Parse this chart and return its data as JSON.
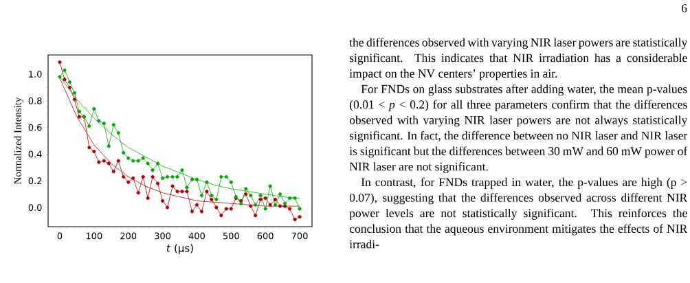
{
  "chart_data": {
    "type": "line",
    "xlabel": "*t* (μs)",
    "ylabel": "Normalized Intensity",
    "xlim": [
      -34,
      736
    ],
    "ylim": [
      -0.144,
      1.144
    ],
    "xticks": [
      0,
      100,
      200,
      300,
      400,
      500,
      600,
      700
    ],
    "yticks": [
      {
        "value": 0,
        "label": "0.0"
      },
      {
        "value": 0.2,
        "label": "0.2"
      },
      {
        "value": 0.4,
        "label": "0.4"
      },
      {
        "value": 0.6,
        "label": "0.6"
      },
      {
        "value": 0.8,
        "label": "0.8"
      },
      {
        "value": 1.0,
        "label": "1.0"
      }
    ],
    "x": [
      0,
      14,
      29,
      43,
      57,
      71,
      86,
      100,
      114,
      129,
      143,
      157,
      171,
      186,
      200,
      214,
      229,
      243,
      257,
      271,
      286,
      300,
      314,
      329,
      343,
      357,
      371,
      386,
      400,
      414,
      429,
      443,
      457,
      471,
      486,
      500,
      514,
      529,
      543,
      557,
      571,
      586,
      600,
      614,
      629,
      643,
      657,
      671,
      686,
      700
    ],
    "marker": "circle",
    "line_style": "solid",
    "series": [
      {
        "type": "line",
        "marker": "none",
        "color": "#c00000",
        "x": [
          0,
          50,
          100,
          150,
          200,
          250,
          300,
          350,
          400,
          450,
          500,
          550,
          600,
          650,
          700
        ],
        "values": [
          0.97,
          0.68,
          0.47,
          0.33,
          0.23,
          0.16,
          0.11,
          0.08,
          0.05,
          0.04,
          0.03,
          0.02,
          0.01,
          0.01,
          0.01
        ]
      },
      {
        "type": "line",
        "marker": "none",
        "color": "#00b000",
        "x": [
          0,
          50,
          100,
          150,
          200,
          250,
          300,
          350,
          400,
          450,
          500,
          550,
          600,
          650,
          700
        ],
        "values": [
          0.98,
          0.81,
          0.67,
          0.55,
          0.45,
          0.38,
          0.31,
          0.26,
          0.21,
          0.17,
          0.14,
          0.12,
          0.1,
          0.08,
          0.07
        ]
      },
      {
        "color": "#b00000",
        "values": [
          1.09,
          0.96,
          0.9,
          0.81,
          0.68,
          0.68,
          0.45,
          0.42,
          0.34,
          0.35,
          0.33,
          0.27,
          0.35,
          0.23,
          0.19,
          0.22,
          0.11,
          0.23,
          0.07,
          0.23,
          0.18,
          0.05,
          0.0,
          0.16,
          0.12,
          0.12,
          0.12,
          -0.03,
          0.02,
          -0.03,
          0.12,
          0.06,
          0.0,
          -0.06,
          -0.01,
          -0.01,
          0.07,
          0.05,
          0.1,
          0.01,
          -0.06,
          0.06,
          0.07,
          0.02,
          0.06,
          0.01,
          0.01,
          -0.01,
          -0.09,
          -0.07
        ]
      },
      {
        "color": "#00aa00",
        "values": [
          0.98,
          1.03,
          0.94,
          0.86,
          0.72,
          0.68,
          0.61,
          0.74,
          0.65,
          0.63,
          0.46,
          0.62,
          0.56,
          0.41,
          0.37,
          0.35,
          0.35,
          0.37,
          0.33,
          0.28,
          0.33,
          0.22,
          0.23,
          0.23,
          0.23,
          0.28,
          0.15,
          0.21,
          0.21,
          0.09,
          0.19,
          0.09,
          0.06,
          0.23,
          0.23,
          0.19,
          0.08,
          0.03,
          0.14,
          0.09,
          0.02,
          0.09,
          -0.01,
          0.16,
          0.02,
          0.1,
          0.03,
          0.07,
          0.07,
          -0.01
        ]
      }
    ],
    "annotations": [
      "6",
      "the differences observed with varying NIR laser powers are statistically significant. This indicates that NIR irradiation has a considerable impact on the NV centers’ properties in air.",
      "For FNDs on glass substrates after adding water, the mean p-values (0.01 < *p* < 0.2) for all three parameters confirm that the differences observed with varying NIR laser powers are not always statistically significant. In fact, the difference between no NIR laser and NIR laser is significant but the differences between 30 mW and 60 mW power of NIR laser are not significant.",
      "In contrast, for FNDs trapped in water, the p-values are high (p > 0.07), suggesting that the differences observed across different NIR power levels are not statistically significant. This reinforces the conclusion that the aqueous environment mitigates the effects of NIR irradi-"
    ]
  }
}
